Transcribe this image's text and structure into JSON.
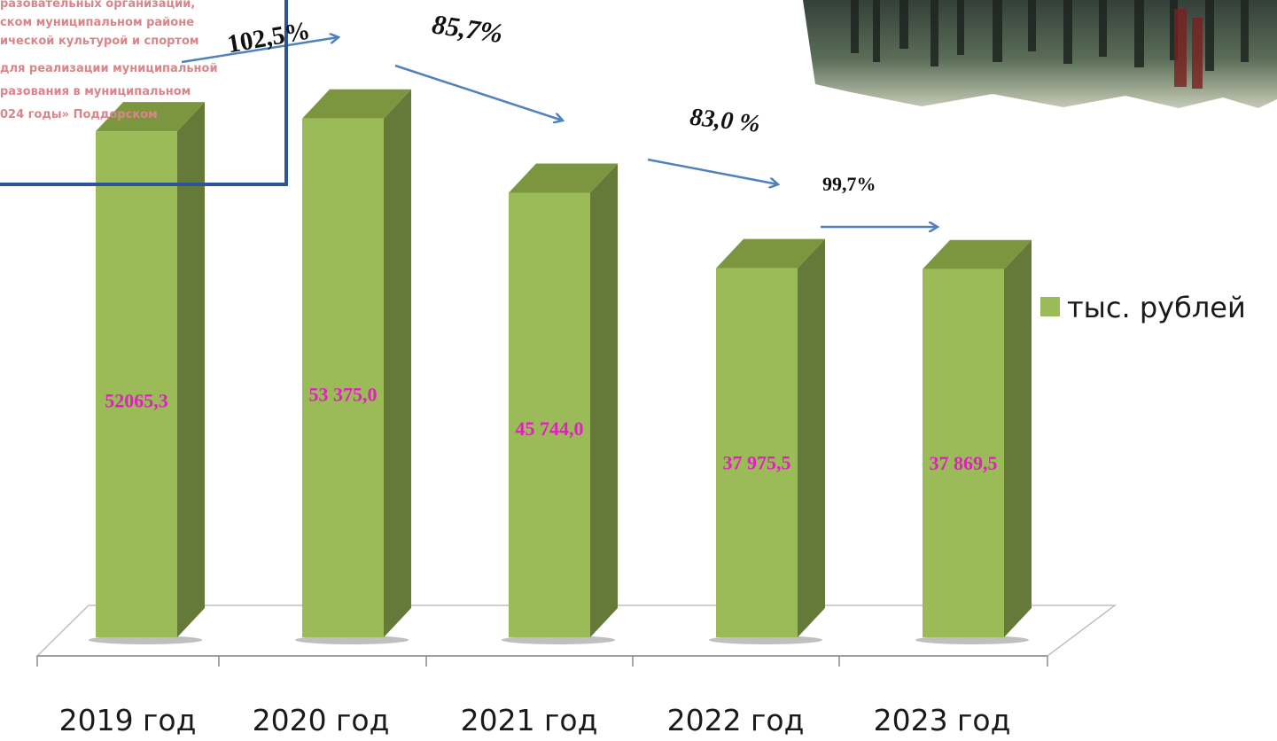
{
  "colors": {
    "bar_front": "#9bbb59",
    "bar_side": "#657a38",
    "bar_top": "#7c963f",
    "value_label": "#e020c0",
    "arrow": "#4f81bd",
    "frame": "#2f5496",
    "note_text": "#d9868a"
  },
  "chart_data": {
    "type": "bar",
    "categories": [
      "2019 год",
      "2020 год",
      "2021 год",
      "2022 год",
      "2023 год"
    ],
    "series": [
      {
        "name": "тыс. рублей",
        "values": [
          52065.3,
          53375.0,
          45744.0,
          37975.5,
          37869.5
        ],
        "value_labels": [
          "52065,3",
          "53 375,0",
          "45 744,0",
          "37 975,5",
          "37 869,5"
        ]
      }
    ],
    "change_labels": [
      "102,5%",
      "85,7%",
      "83,0 %",
      "99,7%"
    ],
    "legend_position": "right",
    "grid": false,
    "three_d": true
  },
  "overlay_note": {
    "lines": [
      "разовательных организаций,",
      "ском муниципальном районе",
      "ической культурой и спортом",
      "для реализации муниципальной",
      "разования в муниципальном",
      "024 годы» Поддорском"
    ]
  },
  "photo": {
    "name": "photo-thumbnail"
  }
}
